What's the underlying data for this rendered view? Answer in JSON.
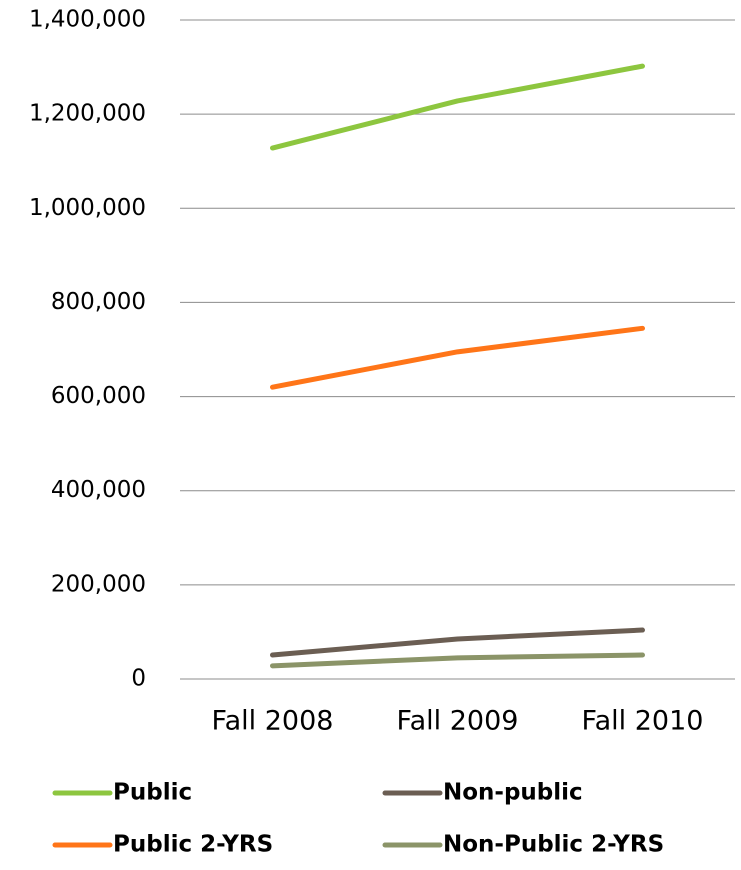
{
  "chart_data": {
    "type": "line",
    "categories": [
      "Fall 2008",
      "Fall 2009",
      "Fall 2010"
    ],
    "series": [
      {
        "name": "Public",
        "color": "#8dc63f",
        "values": [
          1128000,
          1228000,
          1302000
        ]
      },
      {
        "name": "Non-public",
        "color": "#6b5e53",
        "values": [
          51000,
          85000,
          104000
        ]
      },
      {
        "name": "Public 2-YRS",
        "color": "#ff7518",
        "values": [
          620000,
          695000,
          745000
        ]
      },
      {
        "name": "Non-Public 2-YRS",
        "color": "#8b9468",
        "values": [
          28000,
          45000,
          51000
        ]
      }
    ],
    "ylim": [
      0,
      1400000
    ],
    "yticks": [
      0,
      {
        "value": 200000,
        "label": "200,000"
      },
      {
        "value": 400000,
        "label": "400,000"
      },
      {
        "value": 600000,
        "label": "600,000"
      },
      {
        "value": 800000,
        "label": "800,000"
      },
      {
        "value": 1000000,
        "label": "1,000,000"
      },
      {
        "value": 1200000,
        "label": "1,200,000"
      },
      {
        "value": 1400000,
        "label": "1,400,000"
      }
    ],
    "grid": true,
    "legend": "bottom"
  }
}
